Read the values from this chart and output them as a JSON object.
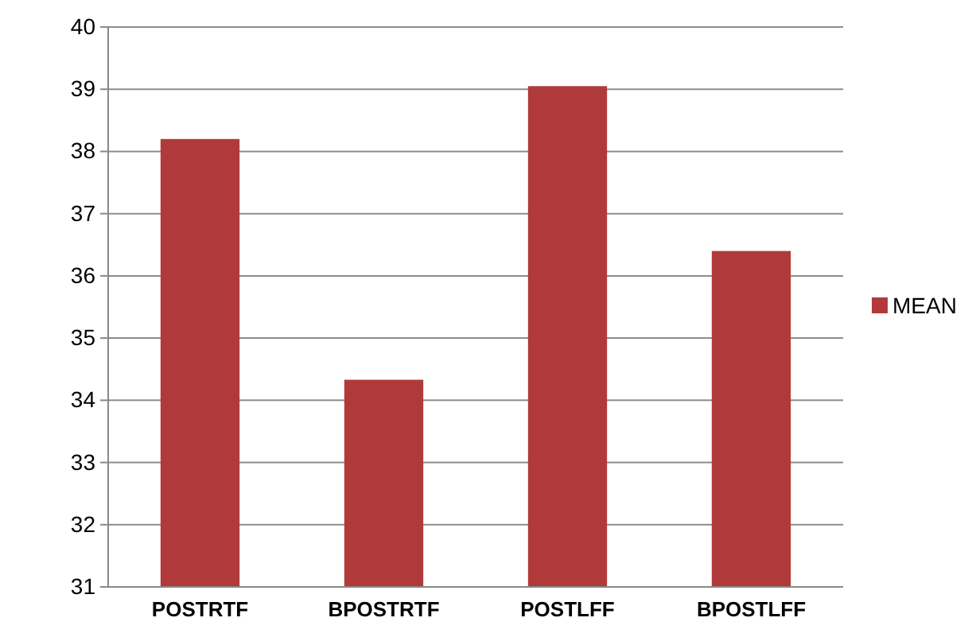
{
  "chart_data": {
    "type": "bar",
    "categories": [
      "POSTRTF",
      "BPOSTRTF",
      "POSTLFF",
      "BPOSTLFF"
    ],
    "series": [
      {
        "name": "MEAN",
        "color": "#b03a3a",
        "values": [
          38.2,
          34.33,
          39.05,
          36.4
        ]
      }
    ],
    "ylim": [
      31,
      40
    ],
    "yticks": [
      31,
      32,
      33,
      34,
      35,
      36,
      37,
      38,
      39,
      40
    ],
    "grid": "y",
    "legend": "right"
  }
}
